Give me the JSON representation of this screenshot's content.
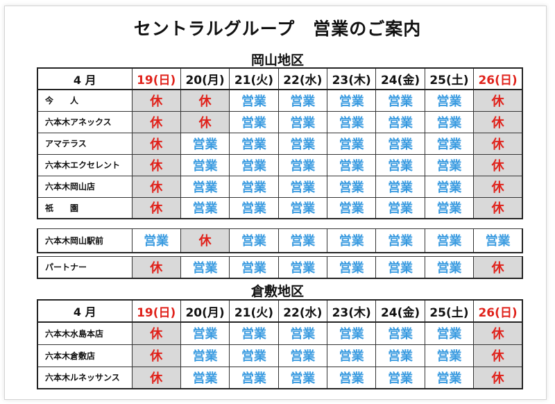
{
  "title": "セントラルグループ　営業のご案内",
  "okayama": {
    "area_title": "岡山地区",
    "header": {
      "month": "4 月",
      "days": [
        "19(日)",
        "20(月)",
        "21(火)",
        "22(水)",
        "23(木)",
        "24(金)",
        "25(土)",
        "26(日)"
      ]
    },
    "stores": [
      {
        "name": "今　　人",
        "status": [
          "休",
          "休",
          "営業",
          "営業",
          "営業",
          "営業",
          "営業",
          "休"
        ]
      },
      {
        "name": "六本木アネックス",
        "status": [
          "休",
          "休",
          "営業",
          "営業",
          "営業",
          "営業",
          "営業",
          "休"
        ]
      },
      {
        "name": "アマテラス",
        "status": [
          "休",
          "営業",
          "営業",
          "営業",
          "営業",
          "営業",
          "営業",
          "休"
        ]
      },
      {
        "name": "六本木エクセレント",
        "status": [
          "休",
          "営業",
          "営業",
          "営業",
          "営業",
          "営業",
          "営業",
          "休"
        ]
      },
      {
        "name": "六本木岡山店",
        "status": [
          "休",
          "営業",
          "営業",
          "営業",
          "営業",
          "営業",
          "営業",
          "休"
        ]
      },
      {
        "name": "祇　　園",
        "status": [
          "休",
          "営業",
          "営業",
          "営業",
          "営業",
          "営業",
          "営業",
          "休"
        ]
      }
    ],
    "station": {
      "name": "六本木岡山駅前",
      "status": [
        "営業",
        "休",
        "営業",
        "営業",
        "営業",
        "営業",
        "営業",
        "営業"
      ]
    },
    "partner": {
      "name": "パートナー",
      "status": [
        "休",
        "営業",
        "営業",
        "営業",
        "営業",
        "営業",
        "営業",
        "休"
      ]
    }
  },
  "kurashiki": {
    "area_title": "倉敷地区",
    "header": {
      "month": "4 月",
      "days": [
        "19(日)",
        "20(月)",
        "21(火)",
        "22(水)",
        "23(木)",
        "24(金)",
        "25(土)",
        "26(日)"
      ]
    },
    "stores": [
      {
        "name": "六本木水島本店",
        "status": [
          "休",
          "営業",
          "営業",
          "営業",
          "営業",
          "営業",
          "営業",
          "休"
        ]
      },
      {
        "name": "六本木倉敷店",
        "status": [
          "休",
          "営業",
          "営業",
          "営業",
          "営業",
          "営業",
          "営業",
          "休"
        ]
      },
      {
        "name": "六本木ルネッサンス",
        "status": [
          "休",
          "営業",
          "営業",
          "営業",
          "営業",
          "営業",
          "営業",
          "休"
        ]
      }
    ]
  },
  "colors": {
    "open": "#3a9be0",
    "closed": "#e0221b",
    "closed_bg": "#d9d9d9"
  }
}
